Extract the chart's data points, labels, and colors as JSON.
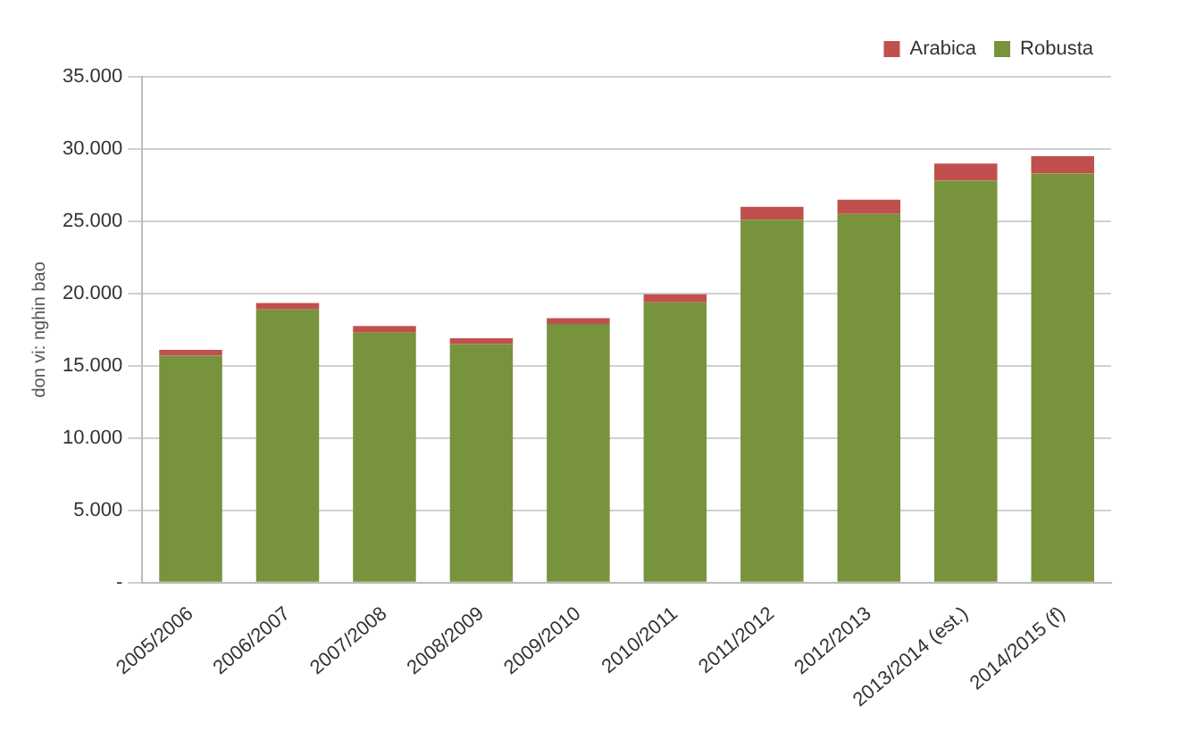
{
  "chart_data": {
    "type": "bar",
    "stacked": true,
    "ylabel": "don vi: nghin bao",
    "categories": [
      "2005/2006",
      "2006/2007",
      "2007/2008",
      "2008/2009",
      "2009/2010",
      "2010/2011",
      "2011/2012",
      "2012/2013",
      "2013/2014 (est.)",
      "2014/2015 (f)"
    ],
    "series": [
      {
        "name": "Robusta",
        "color": "#77933c",
        "values": [
          15700,
          18900,
          17300,
          16500,
          17900,
          19400,
          25100,
          25500,
          27800,
          28300
        ]
      },
      {
        "name": "Arabica",
        "color": "#c0504d",
        "values": [
          400,
          450,
          450,
          400,
          400,
          550,
          900,
          1000,
          1200,
          1200
        ]
      }
    ],
    "ylim": [
      0,
      35000
    ],
    "yticks": [
      {
        "value": 0,
        "label": "-"
      },
      {
        "value": 5000,
        "label": "5.000"
      },
      {
        "value": 10000,
        "label": "10.000"
      },
      {
        "value": 15000,
        "label": "15.000"
      },
      {
        "value": 20000,
        "label": "20.000"
      },
      {
        "value": 25000,
        "label": "25.000"
      },
      {
        "value": 30000,
        "label": "30.000"
      },
      {
        "value": 35000,
        "label": "35.000"
      }
    ],
    "grid": "y",
    "legend": "top right"
  }
}
